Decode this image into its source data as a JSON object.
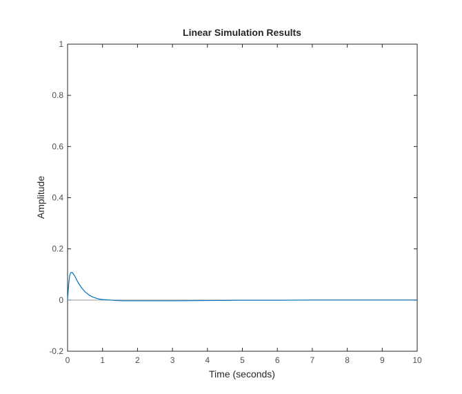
{
  "chart_data": {
    "type": "line",
    "title": "Linear Simulation Results",
    "xlabel": "Time (seconds)",
    "ylabel": "Amplitude",
    "xlim": [
      0,
      10
    ],
    "ylim": [
      -0.2,
      1
    ],
    "xticks": [
      "0",
      "1",
      "2",
      "3",
      "4",
      "5",
      "6",
      "7",
      "8",
      "9",
      "10"
    ],
    "yticks": [
      "-0.2",
      "0",
      "0.2",
      "0.4",
      "0.6",
      "0.8",
      "1"
    ],
    "grid": false,
    "legend": "none",
    "reference_line": {
      "y": 0,
      "color": "#999999"
    },
    "series": [
      {
        "color": "#0072bd",
        "x": [
          0,
          0.03,
          0.06,
          0.09,
          0.12,
          0.15,
          0.2,
          0.25,
          0.3,
          0.4,
          0.5,
          0.6,
          0.7,
          0.8,
          0.9,
          1.0,
          1.2,
          1.4,
          1.6,
          2.0,
          3.0,
          4.0,
          5.0,
          6.0,
          7.0,
          8.0,
          9.0,
          10.0
        ],
        "y": [
          0,
          0.06,
          0.095,
          0.107,
          0.108,
          0.105,
          0.095,
          0.082,
          0.069,
          0.048,
          0.032,
          0.021,
          0.013,
          0.008,
          0.004,
          0.002,
          0.0,
          -0.002,
          -0.003,
          -0.003,
          -0.003,
          -0.002,
          -0.001,
          -0.001,
          0.0,
          0.0,
          0.0,
          0.0
        ]
      }
    ]
  },
  "colors": {
    "axis": "#262626",
    "tick_text": "#4d4d4d",
    "background": "#ffffff"
  }
}
